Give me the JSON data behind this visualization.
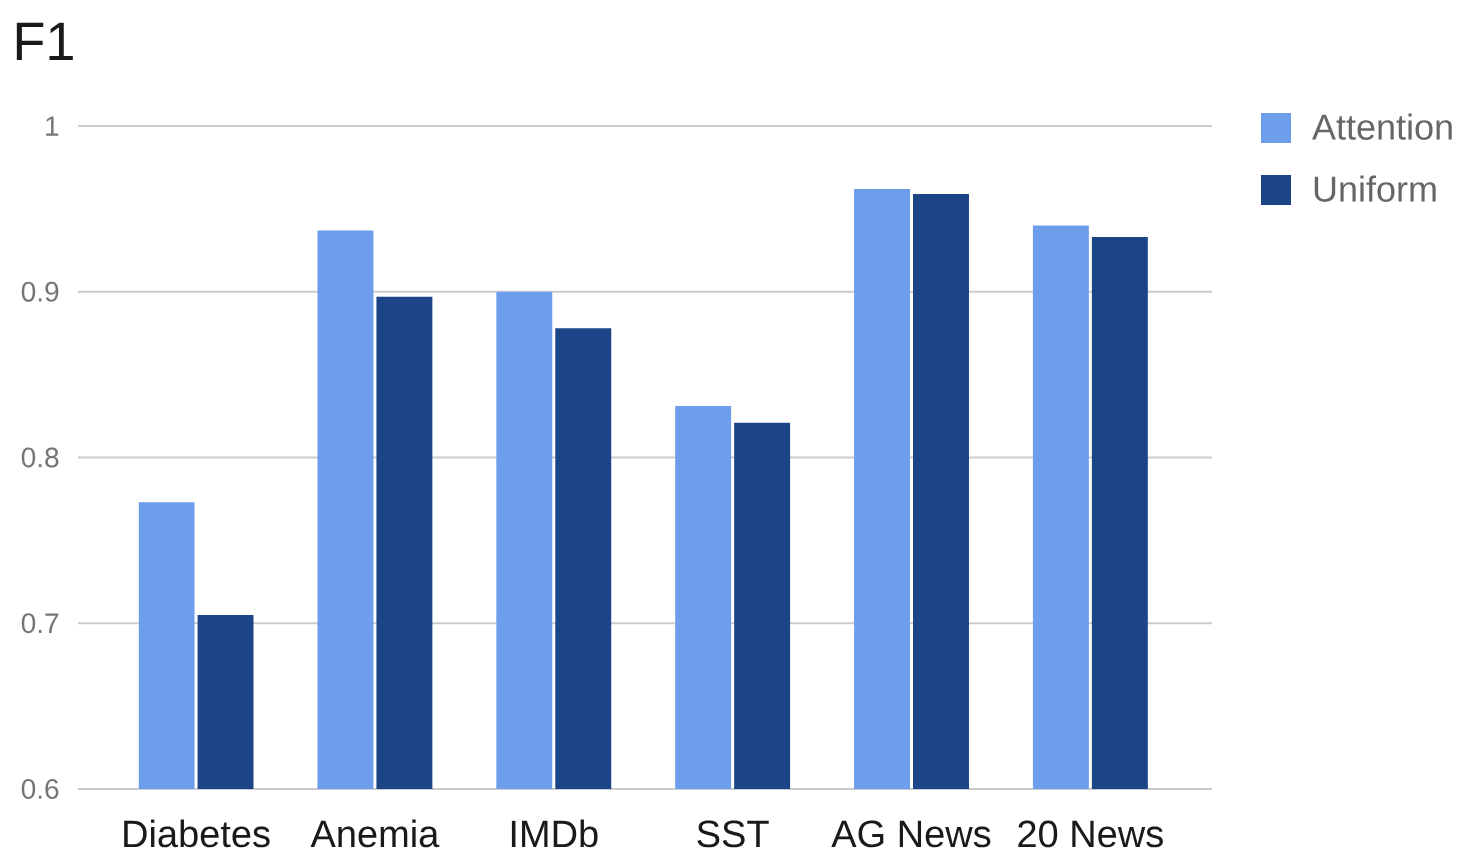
{
  "chart_data": {
    "type": "bar",
    "title": "F1",
    "categories": [
      "Diabetes",
      "Anemia",
      "IMDb",
      "SST",
      "AG News",
      "20 News"
    ],
    "series": [
      {
        "name": "Attention",
        "color": "#6d9eeb",
        "values": [
          0.773,
          0.937,
          0.9,
          0.831,
          0.962,
          0.94
        ]
      },
      {
        "name": "Uniform",
        "color": "#1c4587",
        "values": [
          0.705,
          0.897,
          0.878,
          0.821,
          0.959,
          0.933
        ]
      }
    ],
    "ylim": [
      0.6,
      1
    ],
    "yticks": [
      0.6,
      0.7,
      0.8,
      0.9,
      1
    ],
    "grid": "y",
    "legend": "top right"
  }
}
